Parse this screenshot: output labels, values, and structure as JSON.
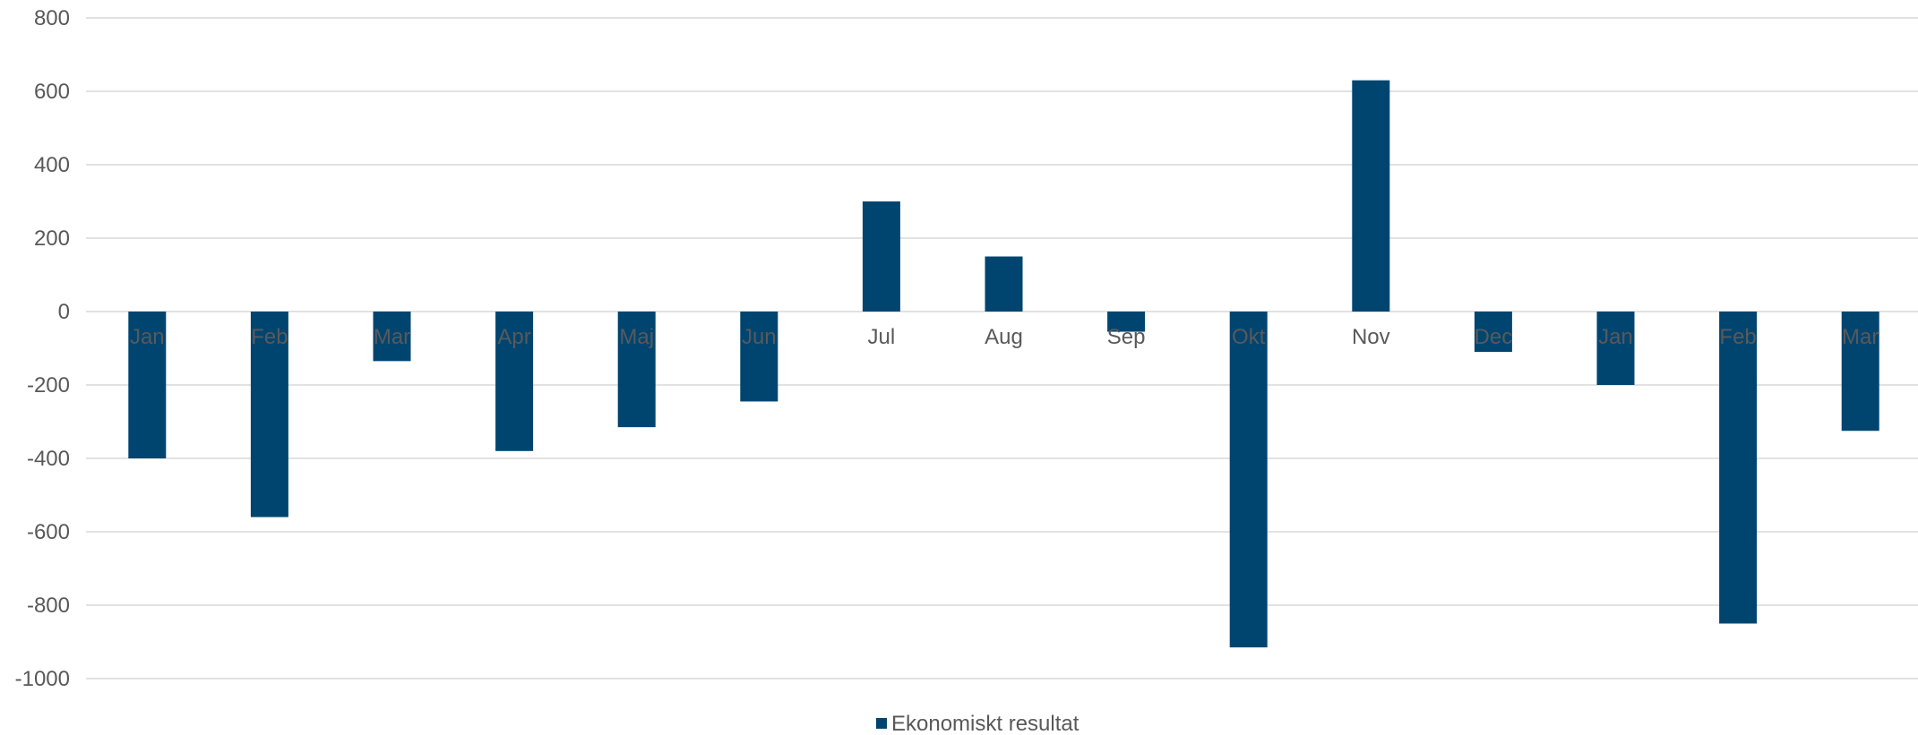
{
  "chart_data": {
    "type": "bar",
    "title": "",
    "xlabel": "",
    "ylabel": "",
    "categories": [
      "Jan",
      "Feb",
      "Mar",
      "Apr",
      "Maj",
      "Jun",
      "Jul",
      "Aug",
      "Sep",
      "Okt",
      "Nov",
      "Dec",
      "Jan",
      "Feb",
      "Mar"
    ],
    "series": [
      {
        "name": "Ekonomiskt resultat",
        "color": "#004570",
        "values": [
          -400,
          -560,
          -135,
          -380,
          -315,
          -245,
          300,
          150,
          -55,
          -915,
          630,
          -110,
          -200,
          -850,
          -325
        ]
      }
    ],
    "ylim": [
      -1000,
      800
    ],
    "yticks": [
      "800",
      "600",
      "400",
      "200",
      "0",
      "-200",
      "-400",
      "-600",
      "-800",
      "-1000"
    ],
    "grid": true,
    "legend": "bottom-center"
  }
}
